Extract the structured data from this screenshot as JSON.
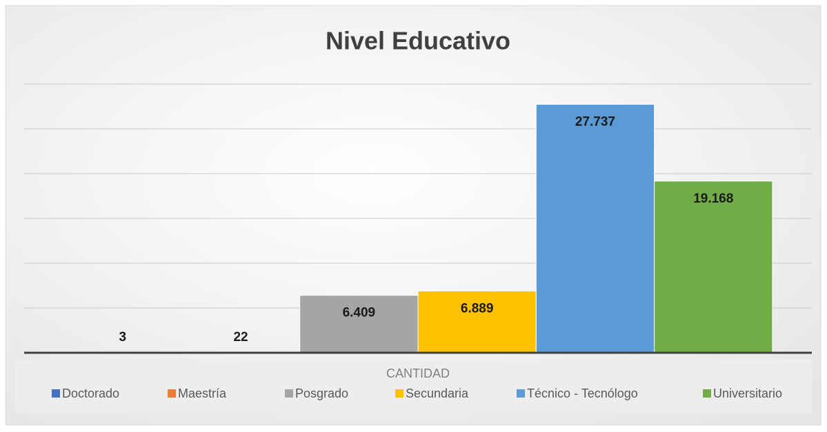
{
  "chart_data": {
    "type": "bar",
    "title": "Nivel Educativo",
    "categories": [
      "CANTIDAD"
    ],
    "series": [
      {
        "name": "Doctorado",
        "color": "#4472c4",
        "values": [
          3
        ]
      },
      {
        "name": "Maestría",
        "color": "#ed7d31",
        "values": [
          22
        ]
      },
      {
        "name": "Posgrado",
        "color": "#a5a5a5",
        "values": [
          6409
        ],
        "value_labels": [
          "6.409"
        ]
      },
      {
        "name": "Secundaria",
        "color": "#ffc000",
        "values": [
          6889
        ],
        "value_labels": [
          "6.889"
        ]
      },
      {
        "name": "Técnico - Tecnólogo",
        "color": "#5b9bd5",
        "values": [
          27737
        ],
        "value_labels": [
          "27.737"
        ]
      },
      {
        "name": "Universitario",
        "color": "#70ad47",
        "values": [
          19168
        ],
        "value_labels": [
          "19.168"
        ]
      }
    ],
    "ylim": [
      0,
      30000
    ],
    "yticks": [
      0,
      5000,
      10000,
      15000,
      20000,
      25000,
      30000
    ],
    "grid": true,
    "legend": "bottom"
  }
}
